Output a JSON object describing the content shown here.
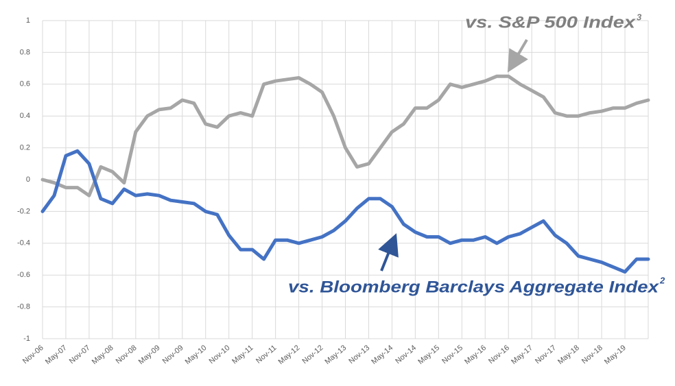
{
  "chart_data": {
    "type": "line",
    "categories": [
      "Nov-06",
      null,
      "May-07",
      null,
      "Nov-07",
      null,
      "May-08",
      null,
      "Nov-08",
      null,
      "May-09",
      null,
      "Nov-09",
      null,
      "May-10",
      null,
      "Nov-10",
      null,
      "May-11",
      null,
      "Nov-11",
      null,
      "May-12",
      null,
      "Nov-12",
      null,
      "May-13",
      null,
      "Nov-13",
      null,
      "May-14",
      null,
      "Nov-14",
      null,
      "May-15",
      null,
      "Nov-15",
      null,
      "May-16",
      null,
      "Nov-16",
      null,
      "May-17",
      null,
      "Nov-17",
      null,
      "May-18",
      null,
      "Nov-18",
      null,
      "May-19",
      null,
      null
    ],
    "series": [
      {
        "name": "vs. S&P 500 Index",
        "superscript": "3",
        "color": "#a6a6a6",
        "values": [
          0.0,
          -0.02,
          -0.05,
          -0.05,
          -0.1,
          0.08,
          0.05,
          -0.02,
          0.3,
          0.4,
          0.44,
          0.45,
          0.5,
          0.48,
          0.35,
          0.33,
          0.4,
          0.42,
          0.4,
          0.6,
          0.62,
          0.63,
          0.64,
          0.6,
          0.55,
          0.4,
          0.2,
          0.08,
          0.1,
          0.2,
          0.3,
          0.35,
          0.45,
          0.45,
          0.5,
          0.6,
          0.58,
          0.6,
          0.62,
          0.65,
          0.65,
          0.6,
          0.56,
          0.52,
          0.42,
          0.4,
          0.4,
          0.42,
          0.43,
          0.45,
          0.45,
          0.48,
          0.5
        ]
      },
      {
        "name": "vs. Bloomberg Barclays Aggregate Index",
        "superscript": "2",
        "color": "#4472c4",
        "values": [
          -0.2,
          -0.1,
          0.15,
          0.18,
          0.1,
          -0.12,
          -0.15,
          -0.06,
          -0.1,
          -0.09,
          -0.1,
          -0.13,
          -0.14,
          -0.15,
          -0.2,
          -0.22,
          -0.35,
          -0.44,
          -0.44,
          -0.5,
          -0.38,
          -0.38,
          -0.4,
          -0.38,
          -0.36,
          -0.32,
          -0.26,
          -0.18,
          -0.12,
          -0.12,
          -0.17,
          -0.28,
          -0.33,
          -0.36,
          -0.36,
          -0.4,
          -0.38,
          -0.38,
          -0.36,
          -0.4,
          -0.36,
          -0.34,
          -0.3,
          -0.26,
          -0.35,
          -0.4,
          -0.48,
          -0.5,
          -0.52,
          -0.55,
          -0.58,
          -0.5,
          -0.5
        ]
      }
    ],
    "ylim": [
      -1,
      1
    ],
    "yticks": [
      -1,
      -0.8,
      -0.6,
      -0.4,
      -0.2,
      0,
      0.2,
      0.4,
      0.6,
      0.8,
      1
    ],
    "grid": true
  }
}
